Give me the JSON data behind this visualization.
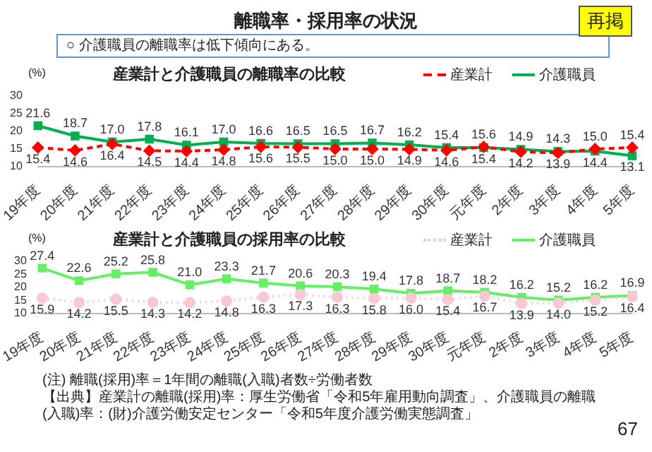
{
  "chart_data": [
    {
      "type": "other",
      "title": "離職率・採用率の状況",
      "subtitle": "○ 介護職員の離職率は低下傾向にある。",
      "annotations": [
        "再掲",
        "(注) 離職(採用)率＝1年間の離職(入職)者数÷労働者数",
        "【出典】産業計の離職(採用)率：厚生労働省「令和5年雇用動向調査」、介護職員の離職(入職)率：(財)介護労働安定センター「令和5年度介護労働実態調査」",
        "67"
      ]
    },
    {
      "type": "line",
      "title": "産業計と介護職員の離職率の比較",
      "ylabel": "(%)",
      "categories": [
        "19年度",
        "20年度",
        "21年度",
        "22年度",
        "23年度",
        "24年度",
        "25年度",
        "26年度",
        "27年度",
        "28年度",
        "29年度",
        "30年度",
        "元年度",
        "2年度",
        "3年度",
        "4年度",
        "5年度"
      ],
      "ylim": [
        10,
        30
      ],
      "yticks": [
        10,
        15,
        20,
        25,
        30
      ],
      "legend": "top right",
      "series": [
        {
          "name": "産業計",
          "color": "#ff0000",
          "marker": "diamond",
          "line_style": "dashed",
          "values": [
            15.4,
            14.6,
            16.4,
            14.5,
            14.4,
            14.8,
            15.6,
            15.5,
            15.0,
            15.0,
            14.9,
            14.6,
            15.6,
            14.2,
            13.9,
            15.0,
            15.4
          ],
          "value_labels": [
            "15.4",
            "14.6",
            "16.4",
            "14.5",
            "14.4",
            "14.8",
            "15.6",
            "15.5",
            "15.0",
            "15.0",
            "14.9",
            "14.6",
            "15.6",
            "14.2",
            "13.9",
            "15.0",
            "15.4"
          ]
        },
        {
          "name": "介護職員",
          "color": "#00b050",
          "marker": "square",
          "line_style": "solid",
          "values": [
            21.6,
            18.7,
            17.0,
            17.8,
            16.1,
            17.0,
            16.6,
            16.5,
            16.5,
            16.7,
            16.2,
            15.4,
            15.4,
            14.9,
            14.3,
            14.4,
            13.1
          ],
          "value_labels": [
            "21.6",
            "18.7",
            "17.0",
            "17.8",
            "16.1",
            "17.0",
            "16.6",
            "16.5",
            "16.5",
            "16.7",
            "16.2",
            "15.4",
            "15.4",
            "14.9",
            "14.3",
            "14.4",
            "13.1"
          ]
        }
      ]
    },
    {
      "type": "line",
      "title": "産業計と介護職員の採用率の比較",
      "ylabel": "(%)",
      "categories": [
        "19年度",
        "20年度",
        "21年度",
        "22年度",
        "23年度",
        "24年度",
        "25年度",
        "26年度",
        "27年度",
        "28年度",
        "29年度",
        "30年度",
        "元年度",
        "2年度",
        "3年度",
        "4年度",
        "5年度"
      ],
      "ylim": [
        10,
        30
      ],
      "yticks": [
        10,
        15,
        20,
        25,
        30
      ],
      "legend": "top right",
      "series": [
        {
          "name": "産業計",
          "color": "#f9c8d2",
          "marker": "circle",
          "line_style": "dotted",
          "values": [
            15.9,
            14.2,
            15.5,
            14.3,
            14.2,
            14.8,
            16.3,
            17.3,
            16.3,
            15.8,
            16.0,
            15.4,
            16.7,
            13.9,
            14.0,
            15.2,
            16.4
          ],
          "value_labels": [
            "15.9",
            "14.2",
            "15.5",
            "14.3",
            "14.2",
            "14.8",
            "16.3",
            "17.3",
            "16.3",
            "15.8",
            "16.0",
            "15.4",
            "16.7",
            "13.9",
            "14.0",
            "15.2",
            "16.4"
          ]
        },
        {
          "name": "介護職員",
          "color": "#66ee66",
          "marker": "square",
          "line_style": "solid",
          "values": [
            27.4,
            22.6,
            25.2,
            25.8,
            21.0,
            23.3,
            21.7,
            20.6,
            20.3,
            19.4,
            17.8,
            18.7,
            18.2,
            16.2,
            15.2,
            16.2,
            16.9
          ],
          "value_labels": [
            "27.4",
            "22.6",
            "25.2",
            "25.8",
            "21.0",
            "23.3",
            "21.7",
            "20.6",
            "20.3",
            "19.4",
            "17.8",
            "18.7",
            "18.2",
            "16.2",
            "15.2",
            "16.2",
            "16.9"
          ]
        }
      ]
    }
  ]
}
